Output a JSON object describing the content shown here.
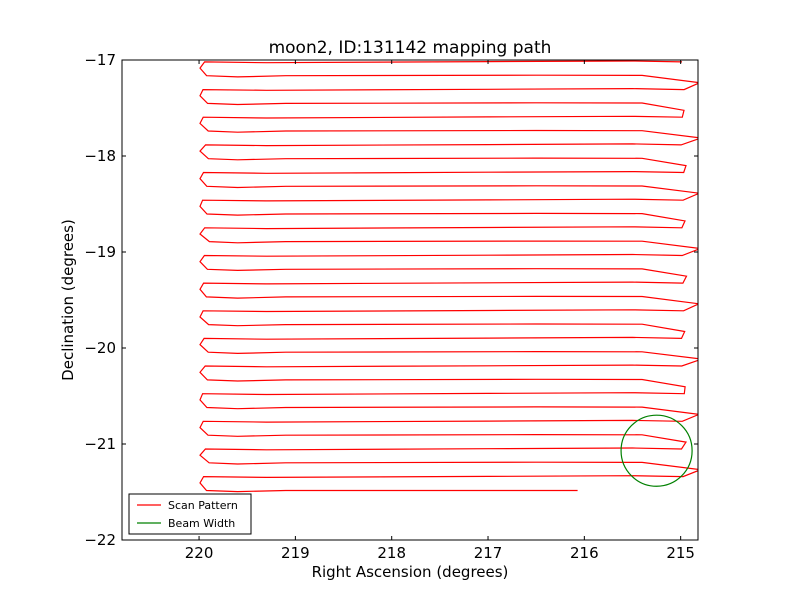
{
  "chart_data": {
    "type": "line",
    "title": "moon2, ID:131142 mapping path",
    "xlabel": "Right Ascension (degrees)",
    "ylabel": "Declination (degrees)",
    "xlim": [
      220.8,
      214.82
    ],
    "ylim": [
      -22,
      -17
    ],
    "x_inverted": true,
    "xticks": [
      220,
      219,
      218,
      217,
      216,
      215
    ],
    "xtick_labels": [
      "220",
      "219",
      "218",
      "217",
      "216",
      "215"
    ],
    "yticks": [
      -17,
      -18,
      -19,
      -20,
      -21,
      -22
    ],
    "ytick_labels": [
      "−17",
      "−18",
      "−19",
      "−20",
      "−21",
      "−22"
    ],
    "grid": false,
    "legend_position": "lower-left",
    "series": [
      {
        "name": "Scan Pattern",
        "color": "#ff0000",
        "kind": "scan_path",
        "ra_left": 219.95,
        "ra_right": 215.0,
        "dec_start": -17.02,
        "dec_end": -21.5,
        "row_spacing": 0.144,
        "end_ra": 216.07
      },
      {
        "name": "Beam Width",
        "color": "#008000",
        "kind": "circle",
        "center_ra": 215.25,
        "center_dec": -21.07,
        "radius_deg": 0.37
      }
    ]
  }
}
